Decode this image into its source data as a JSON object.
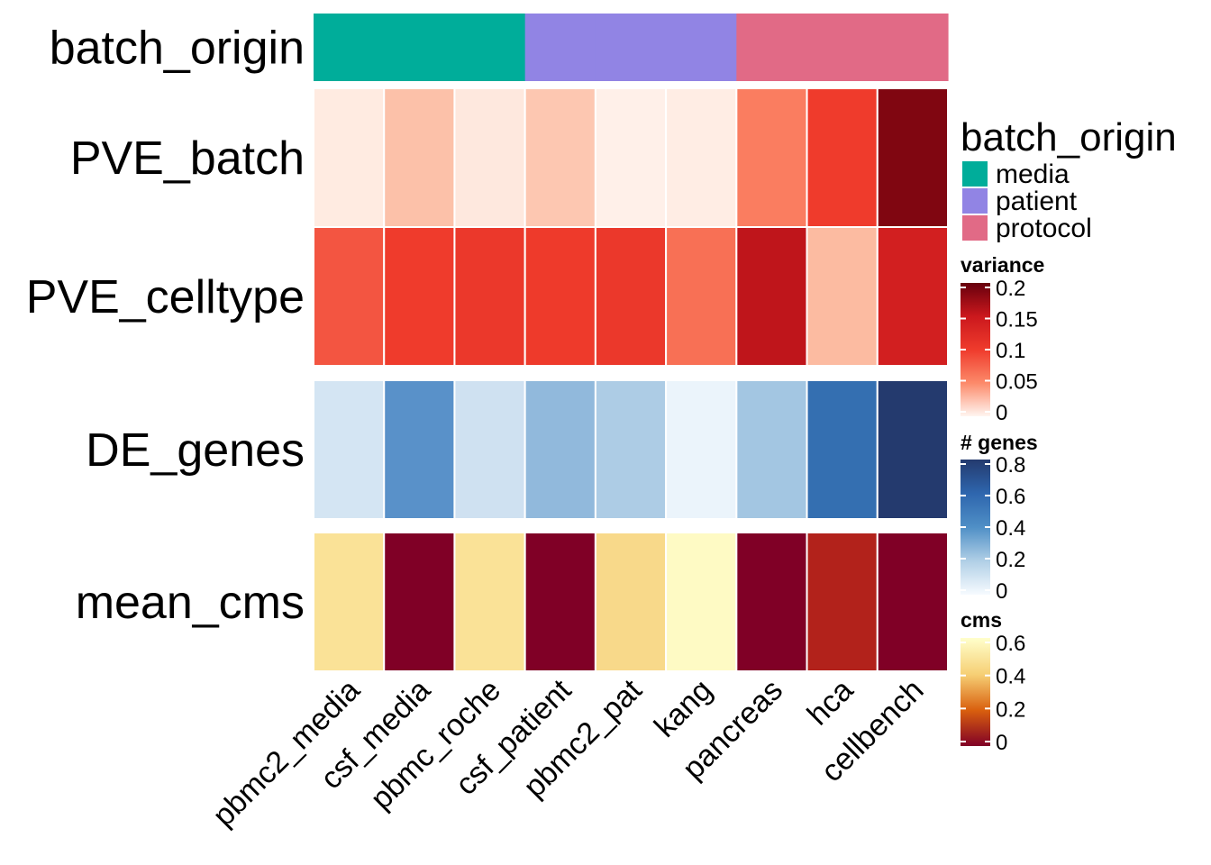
{
  "chart_data": {
    "type": "heatmap",
    "columns": [
      "pbmc2_media",
      "csf_media",
      "pbmc_roche",
      "csf_patient",
      "pbmc2_pat",
      "kang",
      "pancreas",
      "hca",
      "cellbench"
    ],
    "annotation": {
      "name": "batch_origin",
      "values": [
        "media",
        "media",
        "media",
        "patient",
        "patient",
        "patient",
        "protocol",
        "protocol",
        "protocol"
      ],
      "colors": {
        "media": "#00AD9A",
        "patient": "#9184E4",
        "protocol": "#E16A86"
      }
    },
    "rows": [
      {
        "name": "PVE_batch",
        "scale": "variance",
        "values": [
          0.01,
          0.045,
          0.012,
          0.04,
          0.005,
          0.008,
          0.085,
          0.11,
          0.19
        ]
      },
      {
        "name": "PVE_celltype",
        "scale": "variance",
        "values": [
          0.1,
          0.11,
          0.115,
          0.112,
          0.115,
          0.09,
          0.165,
          0.05,
          0.15
        ]
      },
      {
        "name": "DE_genes",
        "scale": "genes",
        "values": [
          0.15,
          0.5,
          0.17,
          0.37,
          0.3,
          0.05,
          0.33,
          0.65,
          0.85
        ]
      },
      {
        "name": "mean_cms",
        "scale": "cms",
        "values": [
          0.47,
          0.0,
          0.47,
          0.0,
          0.44,
          0.58,
          0.0,
          0.08,
          0.0
        ]
      }
    ],
    "legends": {
      "batch_origin": {
        "title": "batch_origin",
        "items": [
          "media",
          "patient",
          "protocol"
        ]
      },
      "variance": {
        "title": "variance",
        "ticks": [
          "0.2",
          "0.15",
          "0.1",
          "0.05",
          "0"
        ],
        "min": 0,
        "max": 0.2,
        "palette": "Reds"
      },
      "genes": {
        "title": "# genes",
        "ticks": [
          "0.8",
          "0.6",
          "0.4",
          "0.2",
          "0"
        ],
        "min": 0,
        "max": 0.8,
        "palette": "Blues"
      },
      "cms": {
        "title": "cms",
        "ticks": [
          "0.6",
          "0.4",
          "0.2",
          "0"
        ],
        "min": 0,
        "max": 0.6,
        "palette": "YlOrRd"
      }
    }
  }
}
